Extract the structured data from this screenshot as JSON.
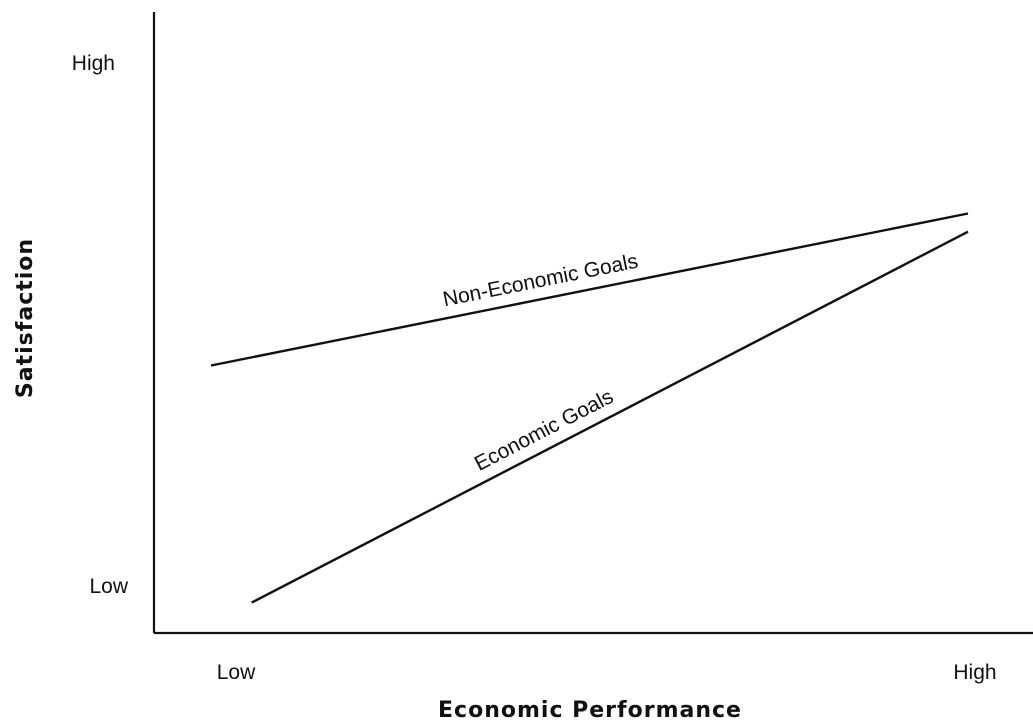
{
  "chart_data": {
    "type": "line",
    "title": "",
    "xlabel": "Economic Performance",
    "ylabel": "Satisfaction",
    "x_tick_labels": [
      "Low",
      "High"
    ],
    "y_tick_labels": [
      "Low",
      "High"
    ],
    "xlim": [
      0,
      1
    ],
    "ylim": [
      0,
      1
    ],
    "grid": false,
    "series": [
      {
        "name": "Non-Economic Goals",
        "x": [
          0.07,
          1.0
        ],
        "y": [
          0.44,
          0.69
        ]
      },
      {
        "name": "Economic Goals",
        "x": [
          0.12,
          1.0
        ],
        "y": [
          0.05,
          0.66
        ]
      }
    ]
  }
}
